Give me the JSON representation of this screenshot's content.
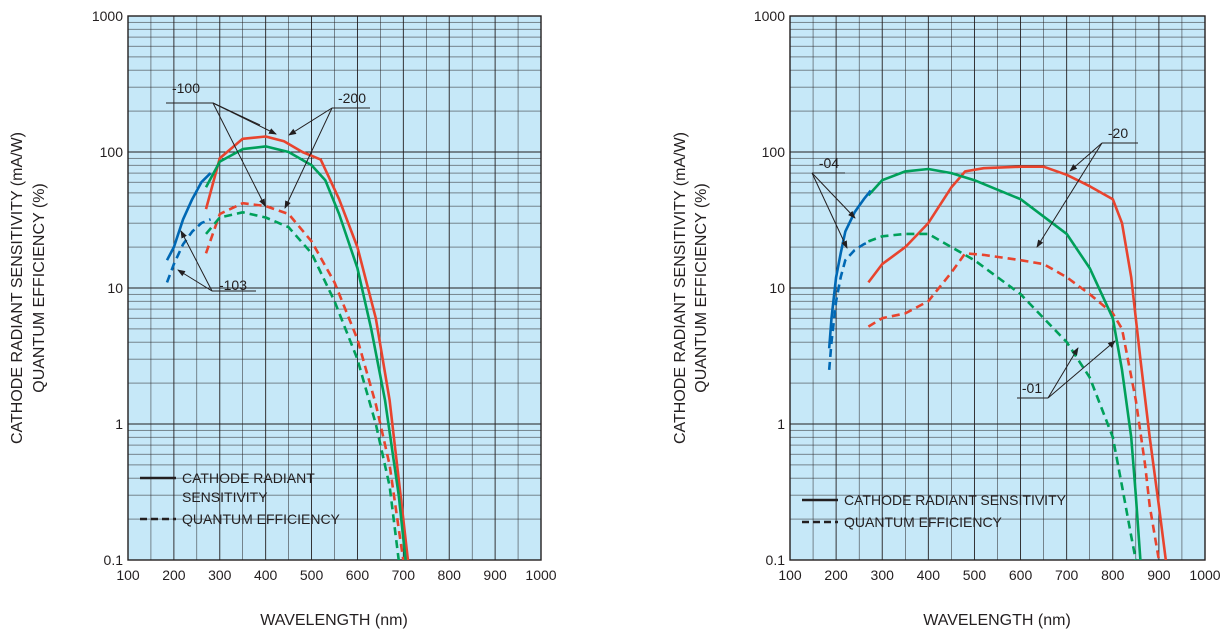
{
  "colors": {
    "plot_bg": "#c6e8f8",
    "grid": "#231f20",
    "red": "#e8442e",
    "green": "#00a05a",
    "blue": "#0068b4"
  },
  "chart_data": [
    {
      "type": "line",
      "xlabel": "WAVELENGTH (nm)",
      "ylabel_lines": [
        "CATHODE RADIANT SENSITIVITY (mA/W)",
        "QUANTUM EFFICIENCY (%)"
      ],
      "xlim": [
        100,
        1000
      ],
      "ylim": [
        0.1,
        1000
      ],
      "yscale": "log",
      "grid": true,
      "x_ticks": [
        "100",
        "200",
        "300",
        "400",
        "500",
        "600",
        "700",
        "800",
        "900",
        "1000"
      ],
      "y_ticks": [
        "0.1",
        "1",
        "10",
        "100",
        "1000"
      ],
      "legend": {
        "placement": "bottom-left",
        "items": [
          {
            "style": "solid",
            "label_lines": [
              "CATHODE RADIANT",
              "SENSITIVITY"
            ]
          },
          {
            "style": "dashed",
            "label_lines": [
              "QUANTUM EFFICIENCY"
            ]
          }
        ]
      },
      "callouts": [
        "-100",
        "-200",
        "-103"
      ],
      "series": [
        {
          "tag": "-200",
          "color": "red",
          "style": "solid",
          "x": [
            270,
            300,
            350,
            400,
            440,
            480,
            520,
            560,
            600,
            640,
            670,
            700,
            710
          ],
          "y": [
            38,
            90,
            125,
            130,
            120,
            100,
            88,
            45,
            20,
            6,
            1.5,
            0.2,
            0.1
          ]
        },
        {
          "tag": "-200",
          "color": "red",
          "style": "dashed",
          "x": [
            270,
            300,
            350,
            400,
            450,
            500,
            550,
            600,
            640,
            670,
            690,
            700
          ],
          "y": [
            18,
            35,
            42,
            40,
            35,
            22,
            11,
            4.2,
            1.4,
            0.5,
            0.17,
            0.1
          ]
        },
        {
          "tag": "-100",
          "color": "green",
          "style": "solid",
          "x": [
            270,
            300,
            350,
            400,
            450,
            500,
            530,
            560,
            600,
            630,
            660,
            690,
            705
          ],
          "y": [
            55,
            85,
            105,
            110,
            100,
            80,
            62,
            35,
            14,
            5,
            1.5,
            0.3,
            0.1
          ]
        },
        {
          "tag": "-100",
          "color": "green",
          "style": "dashed",
          "x": [
            270,
            300,
            350,
            400,
            450,
            500,
            550,
            600,
            640,
            670,
            690
          ],
          "y": [
            25,
            33,
            36,
            33,
            28,
            18,
            8,
            3,
            1,
            0.35,
            0.1
          ]
        },
        {
          "tag": "-103",
          "color": "blue",
          "style": "solid",
          "x": [
            185,
            200,
            220,
            240,
            260,
            280
          ],
          "y": [
            16,
            20,
            32,
            45,
            60,
            70
          ]
        },
        {
          "tag": "-103",
          "color": "blue",
          "style": "dashed",
          "x": [
            185,
            200,
            220,
            240,
            260,
            280
          ],
          "y": [
            11,
            15,
            21,
            26,
            30,
            32
          ]
        }
      ]
    },
    {
      "type": "line",
      "xlabel": "WAVELENGTH (nm)",
      "ylabel_lines": [
        "CATHODE RADIANT SENSITIVITY (mA/W)",
        "QUANTUM EFFICIENCY (%)"
      ],
      "xlim": [
        100,
        1000
      ],
      "ylim": [
        0.1,
        1000
      ],
      "yscale": "log",
      "grid": true,
      "x_ticks": [
        "100",
        "200",
        "300",
        "400",
        "500",
        "600",
        "700",
        "800",
        "900",
        "1000"
      ],
      "y_ticks": [
        "0.1",
        "1",
        "10",
        "100",
        "1000"
      ],
      "legend": {
        "placement": "bottom-left",
        "items": [
          {
            "style": "solid",
            "label_lines": [
              "CATHODE RADIANT SENSITIVITY"
            ]
          },
          {
            "style": "dashed",
            "label_lines": [
              "QUANTUM EFFICIENCY"
            ]
          }
        ]
      },
      "callouts": [
        "-04",
        "-20",
        "-01"
      ],
      "series": [
        {
          "tag": "-20",
          "color": "red",
          "style": "solid",
          "x": [
            270,
            300,
            350,
            400,
            450,
            480,
            520,
            600,
            650,
            700,
            750,
            800,
            820,
            840,
            860,
            880,
            900,
            915
          ],
          "y": [
            11,
            15,
            20,
            30,
            55,
            72,
            76,
            78,
            78,
            68,
            56,
            45,
            30,
            12,
            3,
            0.8,
            0.25,
            0.1
          ]
        },
        {
          "tag": "-20",
          "color": "red",
          "style": "dashed",
          "x": [
            270,
            300,
            350,
            400,
            450,
            480,
            520,
            600,
            650,
            700,
            750,
            800,
            820,
            850,
            870,
            880,
            900
          ],
          "y": [
            5.2,
            6,
            6.5,
            8,
            13,
            18,
            17.5,
            16,
            15,
            12,
            9,
            6.5,
            5,
            1.5,
            0.5,
            0.25,
            0.1
          ]
        },
        {
          "tag": "-01",
          "color": "green",
          "style": "solid",
          "x": [
            270,
            300,
            350,
            400,
            450,
            500,
            600,
            700,
            750,
            800,
            820,
            840,
            850,
            860
          ],
          "y": [
            48,
            62,
            72,
            75,
            70,
            62,
            45,
            25,
            14,
            6,
            2.5,
            0.8,
            0.3,
            0.1
          ]
        },
        {
          "tag": "-01",
          "color": "green",
          "style": "dashed",
          "x": [
            270,
            300,
            350,
            400,
            450,
            500,
            600,
            700,
            750,
            800,
            820,
            840,
            850
          ],
          "y": [
            22,
            24,
            25,
            25,
            20,
            16,
            9,
            4,
            2.2,
            0.8,
            0.35,
            0.15,
            0.1
          ]
        },
        {
          "tag": "-04",
          "color": "blue",
          "style": "solid",
          "x": [
            185,
            190,
            200,
            210,
            220,
            240,
            260,
            275
          ],
          "y": [
            3.6,
            6,
            12,
            18,
            26,
            36,
            45,
            52
          ]
        },
        {
          "tag": "-04",
          "color": "blue",
          "style": "dashed",
          "x": [
            185,
            190,
            200,
            210,
            220,
            240,
            260,
            275
          ],
          "y": [
            2.5,
            4,
            8,
            12,
            16,
            19,
            21,
            22
          ]
        }
      ]
    }
  ]
}
